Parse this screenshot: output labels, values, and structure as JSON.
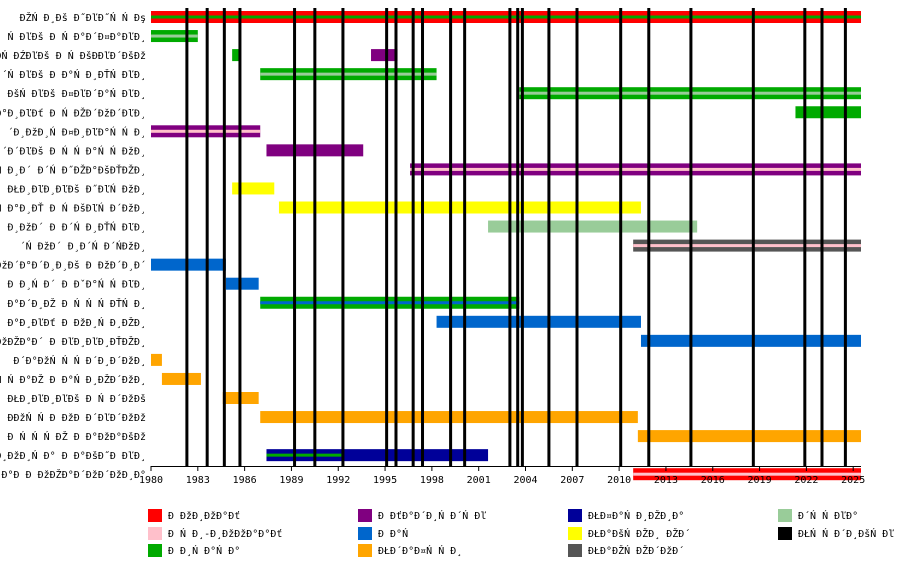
{
  "chart_data": {
    "type": "bar",
    "subtype": "gantt-timeline",
    "title": "",
    "xlabel": "",
    "ylabel": "",
    "xlim": [
      1980,
      2025.5
    ],
    "x_ticks": [
      1980,
      1983,
      1986,
      1989,
      1992,
      1995,
      1998,
      2001,
      2004,
      2007,
      2010,
      2013,
      2016,
      2019,
      2022,
      2025
    ],
    "grid": "vertical event lines, no horizontal grid",
    "legend_placement": "bottom",
    "event_lines": [
      1982.3,
      1983.6,
      1984.7,
      1985.7,
      1989.2,
      1990.5,
      1992.3,
      1995.1,
      1995.7,
      1996.8,
      1997.4,
      1999.2,
      2000.1,
      2003.0,
      2003.5,
      2003.8,
      2005.5,
      2007.3,
      2010.1,
      2011.9,
      2014.6,
      2018.6,
      2021.9,
      2023.0,
      2024.5
    ],
    "rows": [
      "ĐŽŃ Đ¸Đš Đ˝ĐľĐ˝Ń Ń Đş",
      "Ń ĐľĐš Đ Ń Đ°Đ´Đ¤Đ°ĐľĐ¸",
      "ĐŃ ĐŹĐľĐš Đ Ń ĐšĐĐľĐ´ĐšĐž",
      "´Ń ĐľĐš Đ Đ°Ń Đ¸ĐŤŃ ĐľĐ¸",
      "ĐšŃ ĐľĐš Đ¤ĐľĐ´Đ°Ń ĐľĐ¸",
      "Đ°Đ¸ĐľĐť Đ Ń ĐŽĐ´ĐžĐ´ĐľĐ¸",
      "´Đ¸ĐžĐ¸Ń  Đ¤Đ¸ĐľĐ°Ń Ń Đ¸",
      "´Đ´ĐľĐš Đ Ń Ń Đ°Ń Ń ĐžĐ¸",
      "´Ń Đ¸Đ´ Đ´Ń Đ˝ĐŽĐ°ĐšĐŤĐŽĐ¸",
      "ĐŁĐ¸ĐľĐ¸ĐľĐš Đ˝ĐľŃ ĐžĐ¸",
      "Đ¸Ń Đ°Đ¸ĐŤ Đ Ń ĐšĐľŃ Đ´ĐžĐ¸",
      "Đ¸ĐžĐ´ Đ Đ´Ń Đ¸ĐŤŃ ĐľĐ¸",
      "´Ń ĐžĐ´ Đ¸Đ´Ń Đ´ŃĐžĐ¸",
      "ĐžĐ´Đ°Đ´Đ¸Đ¸Đš Đ ĐžĐ´Đ¸Đ´",
      "Đ Đ¸Ń Đ´ Đ ĐˇĐ°Ń Ń ĐľĐ¸",
      "Đ°Đ´Đ¸ĐŽ Đ Ń Ń Ń ĐŤŃ Đ¸",
      "Đ°Đ¸ĐľĐť Đ ĐžĐ¸Ń Đ¸ĐŽĐ¸",
      "ĐžĐŽĐ°Đ´ Đ ĐľĐ¸ĐľĐ¸ĐŤĐŽĐ¸",
      "Đ´Đ°ĐžŃ Ń Ń Đ´Đ¸Đ´ĐžĐ¸",
      "Ń Ń Đ°ĐŽ Đ Đ°Ń Đ¸ĐŽĐ´ĐžĐ¸",
      "ĐŁĐ¸ĐľĐ¸ĐľĐš Đ Ń Đ´ĐžĐš",
      "ĐĐžŃ Ń  Đ ĐžĐ Đ´ĐľĐ´ĐžĐž",
      "Đ Ń Ń Ń ĐŽ Đ Đ°ĐžĐ°ĐšĐž",
      "Đ¸ĐžĐ¸Ń Đ° Đ Đ°ĐšĐ˝Đ ĐľĐ¸",
      "ĐŃ Đ°Đ Đ ĐžĐŽĐ°Đ´ĐžĐ´ĐžĐ¸Đ°"
    ],
    "legend": [
      {
        "label": "Đ ĐžĐ¸ĐžĐ°Đť",
        "color": "#ff0000"
      },
      {
        "label": "Đ Ń Đ¸-Đ¸ĐžĐžĐ°Đ°Đť",
        "color": "#ffc0cb"
      },
      {
        "label": "Đ Đ¸Ń Đ°Ń Đ°",
        "color": "#00aa00"
      },
      {
        "label": "Đ ĐťĐ°Đ´Đ¸Ń Đ´Ń Đľ",
        "color": "#800080"
      },
      {
        "label": "Đ Đ°Ń",
        "color": "#0066cc"
      },
      {
        "label": "ĐŁĐ´Đ°Đ¤Ń Ń Đ¸",
        "color": "#ffa500"
      },
      {
        "label": "ĐŁĐ¤Đ°Ń Đ¸ĐŽĐ¸Đ°",
        "color": "#000099"
      },
      {
        "label": "ĐŁĐ°ĐšŃ ĐŽĐ¸ ĐŽĐ´",
        "color": "#ffff00"
      },
      {
        "label": "ĐŁĐ°ĐŽŃ ĐŽĐ´ĐžĐ´",
        "color": "#555555"
      },
      {
        "label": "Đ´Ń Ń ĐľĐ°",
        "color": "#99cc99"
      },
      {
        "label": "ĐŁŃ Ń Đ´Đ¸ĐšŃ Đľ",
        "color": "#000000"
      }
    ],
    "bars": [
      {
        "row": 0,
        "start": 1980.0,
        "end": 2025.5,
        "color": "#ff0000",
        "stripe": "#00aa00"
      },
      {
        "row": 1,
        "start": 1980.0,
        "end": 1983.0,
        "color": "#00aa00",
        "stripe": "#99cc99"
      },
      {
        "row": 2,
        "start": 1985.2,
        "end": 1985.7,
        "color": "#00aa00"
      },
      {
        "row": 2,
        "start": 1994.1,
        "end": 1995.8,
        "color": "#800080"
      },
      {
        "row": 3,
        "start": 1987.0,
        "end": 1998.3,
        "color": "#00aa00",
        "stripe": "#99cc99"
      },
      {
        "row": 4,
        "start": 2003.6,
        "end": 2025.5,
        "color": "#00aa00",
        "stripe": "#99cc99"
      },
      {
        "row": 5,
        "start": 2021.3,
        "end": 2025.5,
        "color": "#00aa00"
      },
      {
        "row": 6,
        "start": 1980.0,
        "end": 1987.0,
        "color": "#800080",
        "stripe": "#ffc0cb"
      },
      {
        "row": 7,
        "start": 1987.4,
        "end": 1993.6,
        "color": "#800080"
      },
      {
        "row": 8,
        "start": 1996.6,
        "end": 2025.5,
        "color": "#800080",
        "stripe": "#ffc0cb"
      },
      {
        "row": 9,
        "start": 1985.2,
        "end": 1987.9,
        "color": "#ffff00"
      },
      {
        "row": 10,
        "start": 1988.2,
        "end": 2011.4,
        "color": "#ffff00"
      },
      {
        "row": 11,
        "start": 2001.6,
        "end": 2015.0,
        "color": "#99cc99"
      },
      {
        "row": 12,
        "start": 2010.9,
        "end": 2025.5,
        "color": "#555555",
        "stripe": "#ffc0cb"
      },
      {
        "row": 13,
        "start": 1980.0,
        "end": 1984.8,
        "color": "#0066cc"
      },
      {
        "row": 14,
        "start": 1984.8,
        "end": 1986.9,
        "color": "#0066cc"
      },
      {
        "row": 15,
        "start": 1987.0,
        "end": 2003.6,
        "color": "#00aa00",
        "stripe": "#0066cc"
      },
      {
        "row": 16,
        "start": 1998.3,
        "end": 2011.4,
        "color": "#0066cc"
      },
      {
        "row": 17,
        "start": 2011.4,
        "end": 2025.5,
        "color": "#0066cc"
      },
      {
        "row": 18,
        "start": 1980.0,
        "end": 1980.7,
        "color": "#ffa500"
      },
      {
        "row": 19,
        "start": 1980.7,
        "end": 1983.2,
        "color": "#ffa500"
      },
      {
        "row": 20,
        "start": 1984.6,
        "end": 1986.9,
        "color": "#ffa500"
      },
      {
        "row": 21,
        "start": 1987.0,
        "end": 2011.2,
        "color": "#ffa500"
      },
      {
        "row": 22,
        "start": 2011.2,
        "end": 2025.5,
        "color": "#ffa500"
      },
      {
        "row": 23,
        "start": 1987.4,
        "end": 2001.6,
        "color": "#000099",
        "stripe": "#00aa00",
        "stripe_end": 1992.2
      },
      {
        "row": 24,
        "start": 2010.9,
        "end": 2025.5,
        "color": "#ff0000",
        "stripe": "#ffc0cb"
      }
    ]
  }
}
